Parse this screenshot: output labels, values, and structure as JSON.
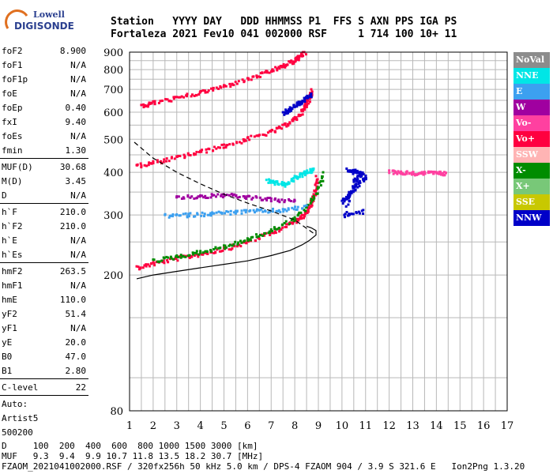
{
  "logo": {
    "line1": "Lowell",
    "line2": "DIGISONDE"
  },
  "header": {
    "labels": "Station   YYYY DAY   DDD HHMMSS P1  FFS S AXN PPS IGA PS",
    "values": "Fortaleza 2021 Fev10 041 002000 RSF     1 714 100 10+ 11"
  },
  "params": {
    "group1": [
      {
        "key": "foF2",
        "value": "8.900"
      },
      {
        "key": "foF1",
        "value": "N/A"
      },
      {
        "key": "foF1p",
        "value": "N/A"
      },
      {
        "key": "foE",
        "value": "N/A"
      },
      {
        "key": "foEp",
        "value": "0.40"
      },
      {
        "key": "fxI",
        "value": "9.40"
      },
      {
        "key": "foEs",
        "value": "N/A"
      },
      {
        "key": "fmin",
        "value": "1.30"
      }
    ],
    "group2": [
      {
        "key": "MUF(D)",
        "value": "30.68"
      },
      {
        "key": "M(D)",
        "value": "3.45"
      },
      {
        "key": "D",
        "value": "N/A"
      }
    ],
    "group3": [
      {
        "key": "h`F",
        "value": "210.0"
      },
      {
        "key": "h`F2",
        "value": "210.0"
      },
      {
        "key": "h`E",
        "value": "N/A"
      },
      {
        "key": "h`Es",
        "value": "N/A"
      }
    ],
    "group4": [
      {
        "key": "hmF2",
        "value": "263.5"
      },
      {
        "key": "hmF1",
        "value": "N/A"
      },
      {
        "key": "hmE",
        "value": "110.0"
      },
      {
        "key": "yF2",
        "value": "51.4"
      },
      {
        "key": "yF1",
        "value": "N/A"
      },
      {
        "key": "yE",
        "value": "20.0"
      },
      {
        "key": "B0",
        "value": "47.0"
      },
      {
        "key": "B1",
        "value": "2.80"
      }
    ],
    "group5": [
      {
        "key": "C-level",
        "value": "22"
      }
    ],
    "autoscale": [
      "Auto:",
      "Artist5",
      "500200"
    ]
  },
  "legend": [
    {
      "label": "NoVal",
      "color": "#8c8c8c"
    },
    {
      "label": "NNE",
      "color": "#00e6e6"
    },
    {
      "label": "E",
      "color": "#3ca0f0"
    },
    {
      "label": "W",
      "color": "#a000a0"
    },
    {
      "label": "Vo-",
      "color": "#ff40a0"
    },
    {
      "label": "Vo+",
      "color": "#ff0040"
    },
    {
      "label": "SSW",
      "color": "#ffb4b4"
    },
    {
      "label": "X-",
      "color": "#008c00"
    },
    {
      "label": "X+",
      "color": "#78c878"
    },
    {
      "label": "SSE",
      "color": "#c8c800"
    },
    {
      "label": "NNW",
      "color": "#0000c8"
    }
  ],
  "footer": {
    "line1": "D     100  200  400  600  800 1000 1500 3000 [km]",
    "line2": "MUF   9.3  9.4  9.9 10.7 11.8 13.5 18.2 30.7 [MHz]",
    "line3": "FZAOM_2021041002000.RSF / 320fx256h 50 kHz 5.0 km / DPS-4 FZAOM 904 / 3.9 S 321.6 E   Ion2Png 1.3.20"
  },
  "chart_data": {
    "type": "scatter",
    "xlim": [
      1,
      17
    ],
    "ylim": [
      80,
      900
    ],
    "x_ticks": [
      1,
      2,
      3,
      4,
      5,
      6,
      7,
      8,
      9,
      10,
      11,
      12,
      13,
      14,
      15,
      16,
      17
    ],
    "y_ticks": [
      80,
      200,
      300,
      400,
      500,
      600,
      700,
      800,
      900
    ],
    "y_scale": "log",
    "grid": true,
    "traces": [
      {
        "name": "F2 O trace",
        "color": "#ff0040",
        "x": [
          1.3,
          2.0,
          3.0,
          4.0,
          5.0,
          6.0,
          7.0,
          7.8,
          8.3,
          8.6,
          8.8,
          8.9
        ],
        "y": [
          212,
          218,
          225,
          232,
          240,
          252,
          268,
          285,
          300,
          320,
          345,
          390
        ]
      },
      {
        "name": "F2 O second hop",
        "color": "#ff0040",
        "x": [
          1.3,
          2.0,
          3.0,
          4.0,
          5.0,
          6.0,
          7.0,
          7.6,
          8.0,
          8.3,
          8.5,
          8.7
        ],
        "y": [
          420,
          430,
          445,
          462,
          482,
          505,
          530,
          555,
          580,
          610,
          650,
          700
        ]
      },
      {
        "name": "F2 O third hop",
        "color": "#ff0040",
        "x": [
          1.5,
          2.0,
          3.0,
          4.0,
          5.0,
          6.0,
          6.8,
          7.4,
          7.8,
          8.1,
          8.4
        ],
        "y": [
          630,
          645,
          665,
          690,
          720,
          755,
          790,
          820,
          845,
          870,
          900
        ]
      },
      {
        "name": "X trace",
        "color": "#008c00",
        "x": [
          2.0,
          3.0,
          4.0,
          5.0,
          6.0,
          7.0,
          8.0,
          8.8,
          9.2
        ],
        "y": [
          222,
          228,
          235,
          244,
          256,
          272,
          295,
          340,
          400
        ]
      },
      {
        "name": "NNE spread",
        "color": "#00e6e6",
        "x": [
          6.8,
          7.2,
          7.6,
          8.0,
          8.4,
          8.8
        ],
        "y": [
          380,
          375,
          370,
          390,
          400,
          410
        ]
      },
      {
        "name": "E spread",
        "color": "#3ca0f0",
        "x": [
          2.5,
          3.5,
          4.5,
          5.5,
          6.5,
          7.5,
          8.5
        ],
        "y": [
          300,
          302,
          305,
          308,
          310,
          312,
          320
        ]
      },
      {
        "name": "W patch",
        "color": "#a000a0",
        "x": [
          3.0,
          4.0,
          5.0,
          6.0,
          7.0,
          8.0
        ],
        "y": [
          340,
          342,
          345,
          340,
          335,
          330
        ]
      },
      {
        "name": "NNW spread F",
        "color": "#0000c8",
        "x": [
          10.0,
          10.3,
          10.6,
          11.0,
          10.2,
          10.8,
          10.5,
          10.1,
          10.9
        ],
        "y": [
          330,
          350,
          370,
          390,
          410,
          400,
          380,
          300,
          310
        ]
      },
      {
        "name": "NNW upper",
        "color": "#0000c8",
        "x": [
          7.5,
          7.8,
          8.1,
          8.4,
          8.7
        ],
        "y": [
          600,
          620,
          640,
          660,
          680
        ]
      },
      {
        "name": "Spread tail",
        "color": "#ff40a0",
        "x": [
          12.0,
          12.5,
          13.0,
          13.5,
          14.0,
          14.4
        ],
        "y": [
          405,
          402,
          400,
          401,
          400,
          399
        ]
      }
    ],
    "profiles": [
      {
        "name": "profile solid",
        "style": "solid",
        "color": "#000000",
        "x": [
          1.3,
          2.0,
          3.0,
          4.0,
          5.0,
          6.0,
          7.0,
          7.8,
          8.3,
          8.6,
          8.9,
          8.9,
          8.7,
          8.5
        ],
        "y": [
          195,
          200,
          205,
          210,
          215,
          220,
          228,
          236,
          245,
          252,
          262,
          270,
          275,
          278
        ]
      },
      {
        "name": "profile dashed",
        "style": "dashed",
        "color": "#000000",
        "x": [
          1.2,
          2.0,
          3.0,
          4.0,
          5.0,
          6.0,
          7.0,
          8.0,
          8.9
        ],
        "y": [
          490,
          440,
          400,
          370,
          345,
          325,
          308,
          290,
          262
        ]
      }
    ]
  }
}
